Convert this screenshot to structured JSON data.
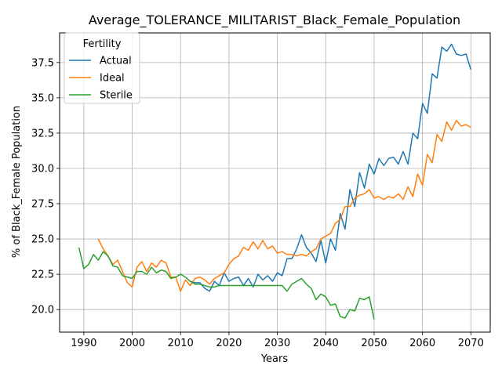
{
  "chart_data": {
    "type": "line",
    "title": "Average_TOLERANCE_MILITARIST_Black_Female_Population",
    "xlabel": "Years",
    "ylabel": "% of Black_Female Population",
    "xlim": [
      1985,
      2074
    ],
    "ylim": [
      18.4,
      39.6
    ],
    "xticks": [
      1990,
      2000,
      2010,
      2020,
      2030,
      2040,
      2050,
      2060,
      2070
    ],
    "xtick_labels": [
      "1990",
      "2000",
      "2010",
      "2020",
      "2030",
      "2040",
      "2050",
      "2060",
      "2070"
    ],
    "yticks": [
      20.0,
      22.5,
      25.0,
      27.5,
      30.0,
      32.5,
      35.0,
      37.5
    ],
    "ytick_labels": [
      "20.0",
      "22.5",
      "25.0",
      "27.5",
      "30.0",
      "32.5",
      "35.0",
      "37.5"
    ],
    "grid": true,
    "legend": {
      "title": "Fertility",
      "placement": "upper-left"
    },
    "series": [
      {
        "name": "Actual",
        "color": "#1f77b4",
        "x": [
          2012,
          2013,
          2014,
          2015,
          2016,
          2017,
          2018,
          2019,
          2020,
          2021,
          2022,
          2023,
          2024,
          2025,
          2026,
          2027,
          2028,
          2029,
          2030,
          2031,
          2032,
          2033,
          2034,
          2035,
          2036,
          2037,
          2038,
          2039,
          2040,
          2041,
          2042,
          2043,
          2044,
          2045,
          2046,
          2047,
          2048,
          2049,
          2050,
          2051,
          2052,
          2053,
          2054,
          2055,
          2056,
          2057,
          2058,
          2059,
          2060,
          2061,
          2062,
          2063,
          2064,
          2065,
          2066,
          2067,
          2068,
          2069,
          2070
        ],
        "y": [
          22.0,
          21.9,
          21.9,
          21.5,
          21.3,
          22.0,
          21.7,
          22.6,
          22.0,
          22.2,
          22.3,
          21.7,
          22.2,
          21.6,
          22.5,
          22.1,
          22.4,
          22.0,
          22.6,
          22.4,
          23.6,
          23.6,
          24.3,
          25.3,
          24.4,
          24.0,
          23.4,
          24.9,
          23.3,
          25.0,
          24.2,
          26.8,
          25.7,
          28.5,
          27.3,
          29.7,
          28.6,
          30.3,
          29.6,
          30.7,
          30.2,
          30.7,
          30.8,
          30.3,
          31.2,
          30.3,
          32.5,
          32.1,
          34.6,
          33.9,
          36.7,
          36.4,
          38.6,
          38.3,
          38.8,
          38.1,
          38.0,
          38.1,
          37.0
        ]
      },
      {
        "name": "Ideal",
        "color": "#ff7f0e",
        "x": [
          1993,
          1994,
          1995,
          1996,
          1997,
          1998,
          1999,
          2000,
          2001,
          2002,
          2003,
          2004,
          2005,
          2006,
          2007,
          2008,
          2009,
          2010,
          2011,
          2012,
          2013,
          2014,
          2015,
          2016,
          2017,
          2018,
          2019,
          2020,
          2021,
          2022,
          2023,
          2024,
          2025,
          2026,
          2027,
          2028,
          2029,
          2030,
          2031,
          2032,
          2033,
          2034,
          2035,
          2036,
          2037,
          2038,
          2039,
          2040,
          2041,
          2042,
          2043,
          2044,
          2045,
          2046,
          2047,
          2048,
          2049,
          2050,
          2051,
          2052,
          2053,
          2054,
          2055,
          2056,
          2057,
          2058,
          2059,
          2060,
          2061,
          2062,
          2063,
          2064,
          2065,
          2066,
          2067,
          2068,
          2069,
          2070
        ],
        "y": [
          25.0,
          24.3,
          23.8,
          23.2,
          23.5,
          22.7,
          21.9,
          21.6,
          23.0,
          23.4,
          22.7,
          23.3,
          23.0,
          23.5,
          23.3,
          22.3,
          22.3,
          21.3,
          22.1,
          21.7,
          22.2,
          22.3,
          22.1,
          21.8,
          22.2,
          22.4,
          22.6,
          23.2,
          23.6,
          23.8,
          24.4,
          24.2,
          24.8,
          24.3,
          24.9,
          24.3,
          24.5,
          24.0,
          24.1,
          23.9,
          23.9,
          23.8,
          23.9,
          23.8,
          24.1,
          24.3,
          25.0,
          25.2,
          25.4,
          26.1,
          26.4,
          27.3,
          27.3,
          27.9,
          28.1,
          28.2,
          28.5,
          27.9,
          28.0,
          27.8,
          28.0,
          27.9,
          28.2,
          27.8,
          28.7,
          28.0,
          29.6,
          28.8,
          31.0,
          30.4,
          32.4,
          31.9,
          33.3,
          32.7,
          33.4,
          33.0,
          33.1,
          32.9
        ]
      },
      {
        "name": "Sterile",
        "color": "#2ca02c",
        "x": [
          1989,
          1990,
          1991,
          1992,
          1993,
          1994,
          1995,
          1996,
          1997,
          1998,
          1999,
          2000,
          2001,
          2002,
          2003,
          2004,
          2005,
          2006,
          2007,
          2008,
          2009,
          2010,
          2011,
          2012,
          2013,
          2014,
          2015,
          2016,
          2017,
          2018,
          2019,
          2020,
          2021,
          2022,
          2023,
          2024,
          2025,
          2026,
          2027,
          2028,
          2029,
          2030,
          2031,
          2032,
          2033,
          2034,
          2035,
          2036,
          2037,
          2038,
          2039,
          2040,
          2041,
          2042,
          2043,
          2044,
          2045,
          2046,
          2047,
          2048,
          2049,
          2050
        ],
        "y": [
          24.4,
          22.9,
          23.2,
          23.9,
          23.5,
          24.1,
          23.8,
          23.1,
          23.0,
          22.4,
          22.3,
          22.2,
          22.7,
          22.7,
          22.5,
          23.0,
          22.6,
          22.8,
          22.7,
          22.2,
          22.3,
          22.5,
          22.3,
          22.0,
          21.8,
          21.8,
          21.7,
          21.6,
          21.6,
          21.7,
          21.7,
          21.7,
          21.7,
          21.7,
          21.7,
          21.7,
          21.7,
          21.7,
          21.7,
          21.7,
          21.7,
          21.7,
          21.7,
          21.3,
          21.8,
          22.0,
          22.2,
          21.8,
          21.5,
          20.7,
          21.1,
          20.9,
          20.3,
          20.4,
          19.5,
          19.4,
          20.0,
          19.9,
          20.8,
          20.7,
          20.9,
          19.3
        ]
      }
    ]
  }
}
